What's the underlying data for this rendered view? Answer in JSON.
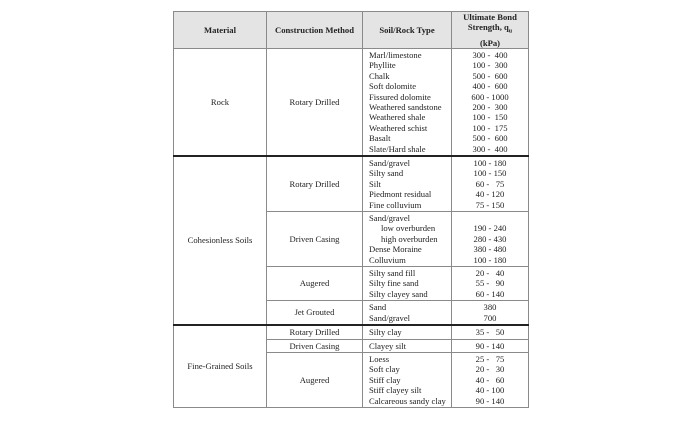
{
  "header": {
    "material": "Material",
    "method": "Construction Method",
    "soil": "Soil/Rock Type",
    "strength_line1": "Ultimate Bond",
    "strength_line2": "Strength, q",
    "strength_sub": "u",
    "strength_unit": "(kPa)"
  },
  "materials": [
    {
      "name": "Rock",
      "methods": [
        {
          "name": "Rotary Drilled",
          "items": [
            {
              "type": "Marl/limestone",
              "strength": "300 -  400"
            },
            {
              "type": "Phyllite",
              "strength": "100 -  300"
            },
            {
              "type": "Chalk",
              "strength": "500 -  600"
            },
            {
              "type": "Soft dolomite",
              "strength": "400 -  600"
            },
            {
              "type": "Fissured dolomite",
              "strength": "600 - 1000"
            },
            {
              "type": "Weathered sandstone",
              "strength": "200 -  300"
            },
            {
              "type": "Weathered shale",
              "strength": "100 -  150"
            },
            {
              "type": "Weathered schist",
              "strength": "100 -  175"
            },
            {
              "type": "Basalt",
              "strength": "500 -  600"
            },
            {
              "type": "Slate/Hard shale",
              "strength": "300 -  400"
            }
          ]
        }
      ]
    },
    {
      "name": "Cohesionless Soils",
      "methods": [
        {
          "name": "Rotary Drilled",
          "items": [
            {
              "type": "Sand/gravel",
              "strength": "100 - 180"
            },
            {
              "type": "Silty sand",
              "strength": "100 - 150"
            },
            {
              "type": "Silt",
              "strength": "60 -   75"
            },
            {
              "type": "Piedmont residual",
              "strength": "40 - 120"
            },
            {
              "type": "Fine colluvium",
              "strength": "75 - 150"
            }
          ]
        },
        {
          "name": "Driven Casing",
          "items": [
            {
              "type": "Sand/gravel",
              "strength": ""
            },
            {
              "type": "low overburden",
              "strength": "190 - 240",
              "indent": true
            },
            {
              "type": "high overburden",
              "strength": "280 - 430",
              "indent": true
            },
            {
              "type": "Dense Moraine",
              "strength": "380 - 480"
            },
            {
              "type": "Colluvium",
              "strength": "100 - 180"
            }
          ]
        },
        {
          "name": "Augered",
          "items": [
            {
              "type": "Silty sand fill",
              "strength": "20 -   40"
            },
            {
              "type": "Silty fine sand",
              "strength": "55 -   90"
            },
            {
              "type": "Silty clayey sand",
              "strength": "60 - 140"
            }
          ]
        },
        {
          "name": "Jet Grouted",
          "items": [
            {
              "type": "Sand",
              "strength": "380"
            },
            {
              "type": "Sand/gravel",
              "strength": "700"
            }
          ]
        }
      ]
    },
    {
      "name": "Fine-Grained Soils",
      "methods": [
        {
          "name": "Rotary Drilled",
          "items": [
            {
              "type": "Silty clay",
              "strength": "35 -   50"
            }
          ]
        },
        {
          "name": "Driven Casing",
          "items": [
            {
              "type": "Clayey silt",
              "strength": "90 - 140"
            }
          ]
        },
        {
          "name": "Augered",
          "items": [
            {
              "type": "Loess",
              "strength": "25 -   75"
            },
            {
              "type": "Soft clay",
              "strength": "20 -   30"
            },
            {
              "type": "Stiff clay",
              "strength": "40 -   60"
            },
            {
              "type": "Stiff clayey silt",
              "strength": "40 - 100"
            },
            {
              "type": "Calcareous sandy clay",
              "strength": "90 - 140",
              "wrap": true
            }
          ]
        }
      ]
    }
  ]
}
